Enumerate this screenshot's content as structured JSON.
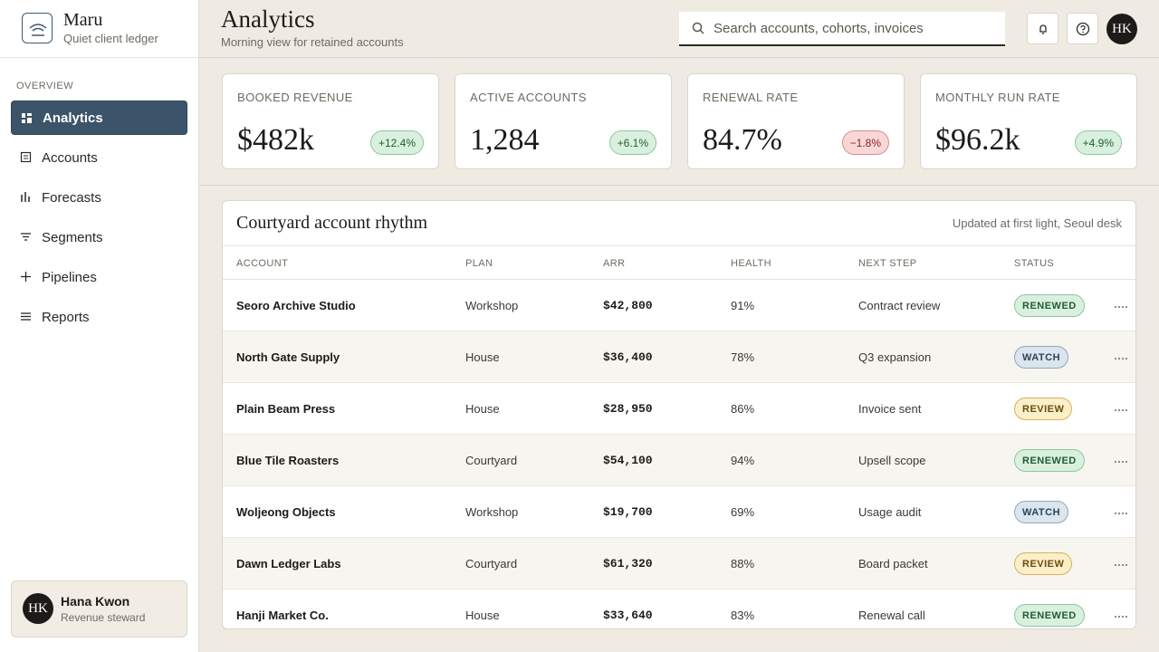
{
  "brand": {
    "name": "Maru",
    "tagline": "Quiet client ledger"
  },
  "nav": {
    "section": "OVERVIEW",
    "items": [
      "Analytics",
      "Accounts",
      "Forecasts",
      "Segments",
      "Pipelines",
      "Reports"
    ]
  },
  "user": {
    "initials": "HK",
    "name": "Hana Kwon",
    "role": "Revenue steward"
  },
  "header": {
    "title": "Analytics",
    "subtitle": "Morning view for retained accounts",
    "search_placeholder": "Search accounts, cohorts, invoices",
    "avatar": "HK"
  },
  "kpis": [
    {
      "label": "BOOKED REVENUE",
      "value": "$482k",
      "delta": "+12.4%",
      "tone": "positive"
    },
    {
      "label": "ACTIVE ACCOUNTS",
      "value": "1,284",
      "delta": "+6.1%",
      "tone": "positive"
    },
    {
      "label": "RENEWAL RATE",
      "value": "84.7%",
      "delta": "−1.8%",
      "tone": "negative"
    },
    {
      "label": "MONTHLY RUN RATE",
      "value": "$96.2k",
      "delta": "+4.9%",
      "tone": "positive"
    }
  ],
  "table": {
    "title": "Courtyard account rhythm",
    "note": "Updated at first light, Seoul desk",
    "columns": [
      "ACCOUNT",
      "PLAN",
      "ARR",
      "HEALTH",
      "NEXT STEP",
      "STATUS"
    ],
    "rows": [
      [
        "Seoro Archive Studio",
        "Workshop",
        "$42,800",
        "91%",
        "Contract review",
        "RENEWED"
      ],
      [
        "North Gate Supply",
        "House",
        "$36,400",
        "78%",
        "Q3 expansion",
        "WATCH"
      ],
      [
        "Plain Beam Press",
        "House",
        "$28,950",
        "86%",
        "Invoice sent",
        "REVIEW"
      ],
      [
        "Blue Tile Roasters",
        "Courtyard",
        "$54,100",
        "94%",
        "Upsell scope",
        "RENEWED"
      ],
      [
        "Woljeong Objects",
        "Workshop",
        "$19,700",
        "69%",
        "Usage audit",
        "WATCH"
      ],
      [
        "Dawn Ledger Labs",
        "Courtyard",
        "$61,320",
        "88%",
        "Board packet",
        "REVIEW"
      ],
      [
        "Hanji Market Co.",
        "House",
        "$33,640",
        "83%",
        "Renewal call",
        "RENEWED"
      ]
    ]
  }
}
